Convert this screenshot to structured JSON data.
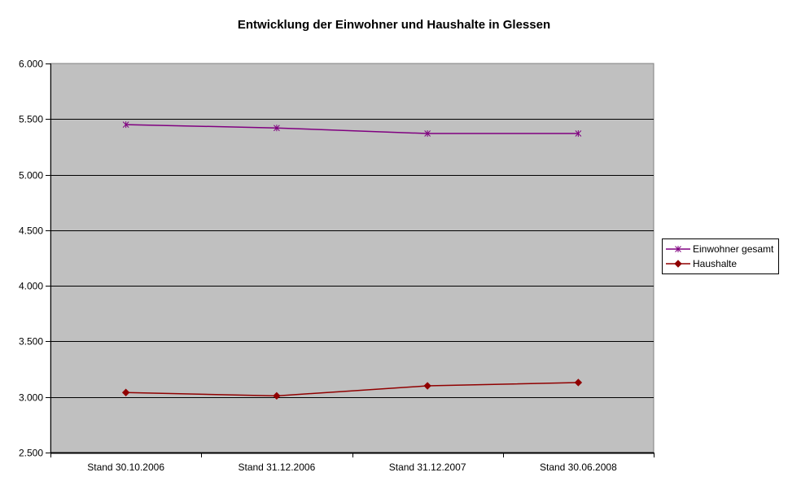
{
  "title": "Entwicklung der Einwohner und Haushalte in Glessen",
  "colors": {
    "page_bg": "#ffffff",
    "plot_bg": "#c0c0c0",
    "plot_border": "#808080",
    "gridline": "#000000",
    "axis": "#000000",
    "text": "#000000",
    "legend_border": "#000000",
    "series_einwohner": "#800080",
    "series_haushalte": "#900000"
  },
  "chart_data": {
    "type": "line",
    "title": "Entwicklung der Einwohner und Haushalte in Glessen",
    "categories": [
      "Stand 30.10.2006",
      "Stand 31.12.2006",
      "Stand 31.12.2007",
      "Stand 30.06.2008"
    ],
    "series": [
      {
        "name": "Einwohner gesamt",
        "values": [
          5450,
          5420,
          5370,
          5370
        ],
        "color": "#800080",
        "marker": "asterisk"
      },
      {
        "name": "Haushalte",
        "values": [
          3040,
          3010,
          3100,
          3130
        ],
        "color": "#900000",
        "marker": "diamond"
      }
    ],
    "xlabel": "",
    "ylabel": "",
    "ylim": [
      2500,
      6000
    ],
    "ytick_step": 500,
    "ytick_labels": [
      "2.500",
      "3.000",
      "3.500",
      "4.000",
      "4.500",
      "5.000",
      "5.500",
      "6.000"
    ],
    "grid": true,
    "legend_position": "right"
  }
}
